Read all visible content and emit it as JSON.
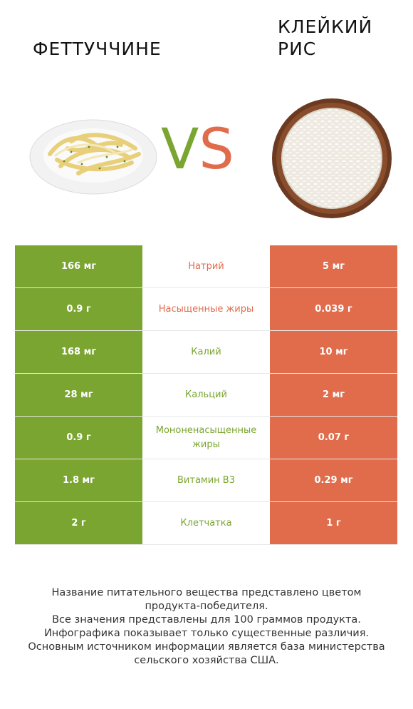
{
  "products": {
    "left": {
      "name": "ФЕТТУЧЧИНЕ",
      "color": "#7aa530",
      "image": "pasta-plate-image"
    },
    "right": {
      "name": "КЛЕЙКИЙ РИС",
      "color": "#e06c4c",
      "image": "rice-bowl-image"
    }
  },
  "vs": {
    "v": "V",
    "s": "S"
  },
  "rows": [
    {
      "nutrient": "Натрий",
      "left": "166 мг",
      "right": "5 мг",
      "winner": "right"
    },
    {
      "nutrient": "Насыщенные жиры",
      "left": "0.9 г",
      "right": "0.039 г",
      "winner": "right"
    },
    {
      "nutrient": "Калий",
      "left": "168 мг",
      "right": "10 мг",
      "winner": "left"
    },
    {
      "nutrient": "Кальций",
      "left": "28 мг",
      "right": "2 мг",
      "winner": "left"
    },
    {
      "nutrient": "Мононенасыщенные жиры",
      "left": "0.9 г",
      "right": "0.07 г",
      "winner": "left"
    },
    {
      "nutrient": "Витамин B3",
      "left": "1.8 мг",
      "right": "0.29 мг",
      "winner": "left"
    },
    {
      "nutrient": "Клетчатка",
      "left": "2 г",
      "right": "1 г",
      "winner": "left"
    }
  ],
  "footer": {
    "line1": "Название питательного вещества представлено цветом",
    "line2": "продукта-победителя.",
    "line3": "Все значения представлены для 100 граммов продукта.",
    "line4": "Инфографика показывает только существенные различия.",
    "line5": "Основным источником информации является база министерства",
    "line6": "сельского хозяйства США."
  }
}
